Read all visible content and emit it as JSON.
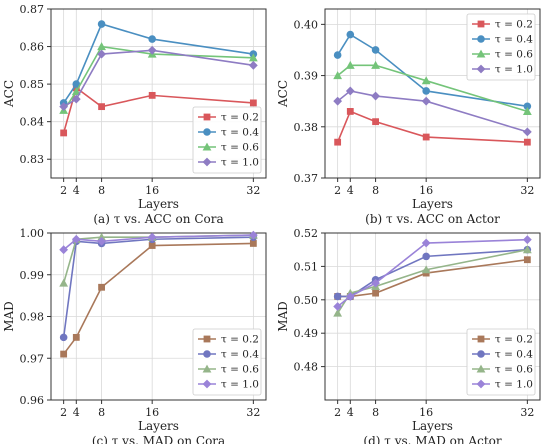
{
  "chart_data": [
    {
      "type": "line",
      "caption": "(a) τ vs. ACC on Cora",
      "xlabel": "Layers",
      "ylabel": "ACC",
      "x": [
        2,
        4,
        8,
        16,
        32
      ],
      "xticks": [
        2,
        4,
        8,
        16,
        32
      ],
      "ylim": [
        0.825,
        0.87
      ],
      "yticks": [
        0.83,
        0.84,
        0.85,
        0.86,
        0.87
      ],
      "ytick_labels": [
        "0.83",
        "0.84",
        "0.85",
        "0.86",
        "0.87"
      ],
      "legend_position": "lower-right",
      "series": [
        {
          "name": "τ = 0.2",
          "color": "#d9575b",
          "marker": "square",
          "values": [
            0.837,
            0.849,
            0.844,
            0.847,
            0.845
          ]
        },
        {
          "name": "τ = 0.4",
          "color": "#4a8fc1",
          "marker": "circle",
          "values": [
            0.845,
            0.85,
            0.866,
            0.862,
            0.858
          ]
        },
        {
          "name": "τ = 0.6",
          "color": "#74c479",
          "marker": "triangle",
          "values": [
            0.843,
            0.848,
            0.86,
            0.858,
            0.857
          ]
        },
        {
          "name": "τ = 1.0",
          "color": "#8e7cc3",
          "marker": "diamond",
          "values": [
            0.844,
            0.846,
            0.858,
            0.859,
            0.855
          ]
        }
      ]
    },
    {
      "type": "line",
      "caption": "(b) τ vs. ACC on Actor",
      "xlabel": "Layers",
      "ylabel": "ACC",
      "x": [
        2,
        4,
        8,
        16,
        32
      ],
      "xticks": [
        2,
        4,
        8,
        16,
        32
      ],
      "ylim": [
        0.37,
        0.403
      ],
      "yticks": [
        0.37,
        0.38,
        0.39,
        0.4
      ],
      "ytick_labels": [
        "0.37",
        "0.38",
        "0.39",
        "0.40"
      ],
      "legend_position": "upper-right",
      "series": [
        {
          "name": "τ = 0.2",
          "color": "#d9575b",
          "marker": "square",
          "values": [
            0.377,
            0.383,
            0.381,
            0.378,
            0.377
          ]
        },
        {
          "name": "τ = 0.4",
          "color": "#4a8fc1",
          "marker": "circle",
          "values": [
            0.394,
            0.398,
            0.395,
            0.387,
            0.384
          ]
        },
        {
          "name": "τ = 0.6",
          "color": "#74c479",
          "marker": "triangle",
          "values": [
            0.39,
            0.392,
            0.392,
            0.389,
            0.383
          ]
        },
        {
          "name": "τ = 1.0",
          "color": "#8e7cc3",
          "marker": "diamond",
          "values": [
            0.385,
            0.387,
            0.386,
            0.385,
            0.379
          ]
        }
      ]
    },
    {
      "type": "line",
      "caption": "(c) τ vs. MAD on Cora",
      "xlabel": "Layers",
      "ylabel": "MAD",
      "x": [
        2,
        4,
        8,
        16,
        32
      ],
      "xticks": [
        2,
        4,
        8,
        16,
        32
      ],
      "ylim": [
        0.96,
        1.0
      ],
      "yticks": [
        0.96,
        0.97,
        0.98,
        0.99,
        1.0
      ],
      "ytick_labels": [
        "0.96",
        "0.97",
        "0.98",
        "0.99",
        "1.00"
      ],
      "legend_position": "lower-right",
      "series": [
        {
          "name": "τ = 0.2",
          "color": "#a9785a",
          "marker": "square",
          "values": [
            0.971,
            0.975,
            0.987,
            0.997,
            0.9975
          ]
        },
        {
          "name": "τ = 0.4",
          "color": "#7076c0",
          "marker": "circle",
          "values": [
            0.975,
            0.998,
            0.9975,
            0.9985,
            0.999
          ]
        },
        {
          "name": "τ = 0.6",
          "color": "#95b58a",
          "marker": "triangle",
          "values": [
            0.988,
            0.9985,
            0.999,
            0.999,
            0.9995
          ]
        },
        {
          "name": "τ = 1.0",
          "color": "#9a83d8",
          "marker": "diamond",
          "values": [
            0.996,
            0.9985,
            0.998,
            0.999,
            0.9995
          ]
        }
      ]
    },
    {
      "type": "line",
      "caption": "(d) τ vs. MAD on Actor",
      "xlabel": "Layers",
      "ylabel": "MAD",
      "x": [
        2,
        4,
        8,
        16,
        32
      ],
      "xticks": [
        2,
        4,
        8,
        16,
        32
      ],
      "ylim": [
        0.47,
        0.52
      ],
      "yticks": [
        0.48,
        0.49,
        0.5,
        0.51,
        0.52
      ],
      "ytick_labels": [
        "0.48",
        "0.49",
        "0.50",
        "0.51",
        "0.52"
      ],
      "legend_position": "lower-right",
      "series": [
        {
          "name": "τ = 0.2",
          "color": "#a9785a",
          "marker": "square",
          "values": [
            0.501,
            0.501,
            0.502,
            0.508,
            0.512
          ]
        },
        {
          "name": "τ = 0.4",
          "color": "#7076c0",
          "marker": "circle",
          "values": [
            0.501,
            0.501,
            0.506,
            0.513,
            0.515
          ]
        },
        {
          "name": "τ = 0.6",
          "color": "#95b58a",
          "marker": "triangle",
          "values": [
            0.496,
            0.502,
            0.504,
            0.509,
            0.515
          ]
        },
        {
          "name": "τ = 1.0",
          "color": "#9a83d8",
          "marker": "diamond",
          "values": [
            0.498,
            0.501,
            0.505,
            0.517,
            0.518
          ]
        }
      ]
    }
  ]
}
